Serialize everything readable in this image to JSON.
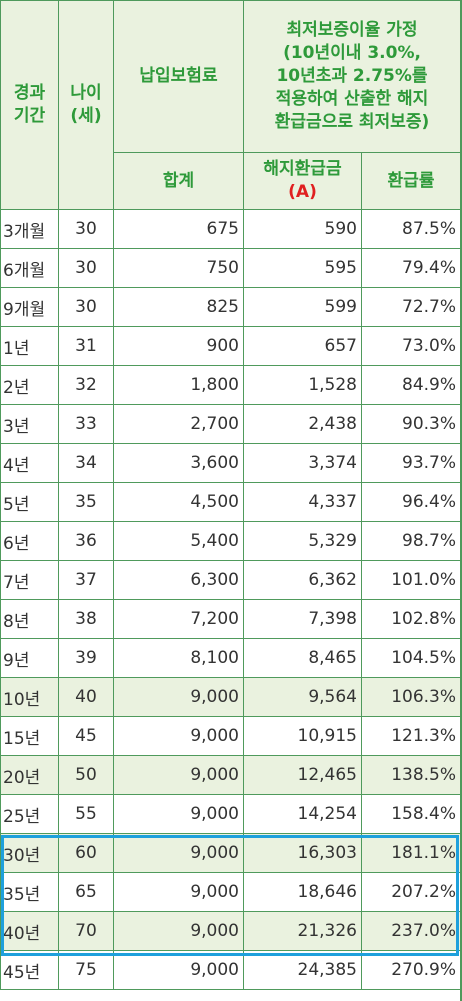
{
  "headers": {
    "period": "경과\n기간",
    "age": "나이\n(세)",
    "paid": "납입보험료",
    "assumption": "최저보증이율 가정\n(10년이내 3.0%,\n10년초과 2.75%를\n적용하여 산출한 해지\n환급금으로 최저보증)",
    "total": "합계",
    "refund": "해지환급금",
    "refund_mark": "(A)",
    "rate": "환급률"
  },
  "rows": [
    {
      "period": "3개월",
      "age": "30",
      "total": "675",
      "refund": "590",
      "rate": "87.5%"
    },
    {
      "period": "6개월",
      "age": "30",
      "total": "750",
      "refund": "595",
      "rate": "79.4%"
    },
    {
      "period": "9개월",
      "age": "30",
      "total": "825",
      "refund": "599",
      "rate": "72.7%"
    },
    {
      "period": "1년",
      "age": "31",
      "total": "900",
      "refund": "657",
      "rate": "73.0%"
    },
    {
      "period": "2년",
      "age": "32",
      "total": "1,800",
      "refund": "1,528",
      "rate": "84.9%"
    },
    {
      "period": "3년",
      "age": "33",
      "total": "2,700",
      "refund": "2,438",
      "rate": "90.3%"
    },
    {
      "period": "4년",
      "age": "34",
      "total": "3,600",
      "refund": "3,374",
      "rate": "93.7%"
    },
    {
      "period": "5년",
      "age": "35",
      "total": "4,500",
      "refund": "4,337",
      "rate": "96.4%"
    },
    {
      "period": "6년",
      "age": "36",
      "total": "5,400",
      "refund": "5,329",
      "rate": "98.7%"
    },
    {
      "period": "7년",
      "age": "37",
      "total": "6,300",
      "refund": "6,362",
      "rate": "101.0%"
    },
    {
      "period": "8년",
      "age": "38",
      "total": "7,200",
      "refund": "7,398",
      "rate": "102.8%"
    },
    {
      "period": "9년",
      "age": "39",
      "total": "8,100",
      "refund": "8,465",
      "rate": "104.5%"
    },
    {
      "period": "10년",
      "age": "40",
      "total": "9,000",
      "refund": "9,564",
      "rate": "106.3%",
      "highlight": true
    },
    {
      "period": "15년",
      "age": "45",
      "total": "9,000",
      "refund": "10,915",
      "rate": "121.3%"
    },
    {
      "period": "20년",
      "age": "50",
      "total": "9,000",
      "refund": "12,465",
      "rate": "138.5%",
      "highlight": true
    },
    {
      "period": "25년",
      "age": "55",
      "total": "9,000",
      "refund": "14,254",
      "rate": "158.4%"
    },
    {
      "period": "30년",
      "age": "60",
      "total": "9,000",
      "refund": "16,303",
      "rate": "181.1%",
      "highlight": true
    },
    {
      "period": "35년",
      "age": "65",
      "total": "9,000",
      "refund": "18,646",
      "rate": "207.2%"
    },
    {
      "period": "40년",
      "age": "70",
      "total": "9,000",
      "refund": "21,326",
      "rate": "237.0%",
      "highlight": true
    },
    {
      "period": "45년",
      "age": "75",
      "total": "9,000",
      "refund": "24,385",
      "rate": "270.9%"
    }
  ],
  "colors": {
    "header_text": "#2e9a3a",
    "header_bg": "#eaf2df",
    "border": "#4f9a5c",
    "mark": "#e02020",
    "selection_box": "#1ea0dc"
  }
}
